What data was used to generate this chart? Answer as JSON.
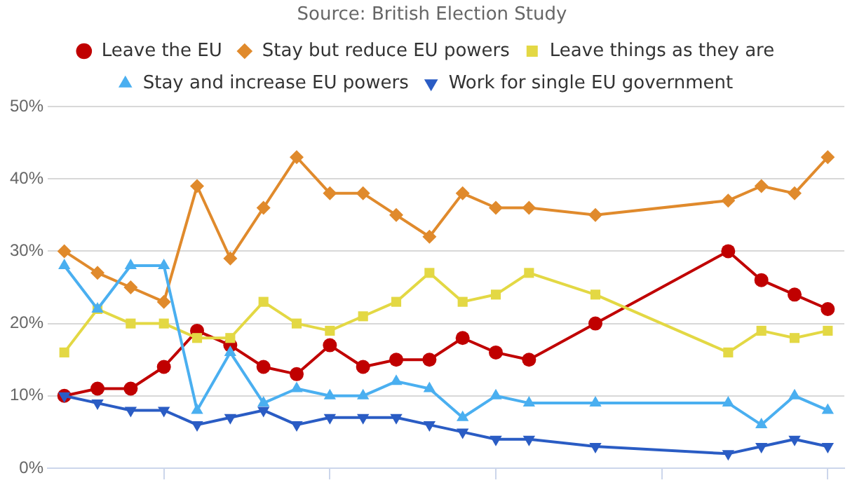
{
  "chart_data": {
    "type": "line",
    "annotations": [
      "Source: British Election Study"
    ],
    "categories": [
      null,
      null,
      null,
      null,
      null,
      null,
      null,
      null,
      null,
      null,
      null,
      null,
      null,
      null,
      null,
      null,
      null,
      null,
      null,
      null,
      null,
      null,
      null,
      null
    ],
    "series": [
      {
        "name": "Leave the EU",
        "color": "#c00000",
        "marker": "circle",
        "values": [
          10,
          11,
          11,
          14,
          19,
          17,
          14,
          13,
          17,
          14,
          15,
          15,
          18,
          16,
          15,
          null,
          20,
          null,
          null,
          null,
          30,
          26,
          24,
          22
        ]
      },
      {
        "name": "Stay but reduce EU powers",
        "color": "#e08a2c",
        "marker": "diamond",
        "values": [
          30,
          27,
          25,
          23,
          39,
          29,
          36,
          43,
          38,
          38,
          35,
          32,
          38,
          36,
          36,
          null,
          35,
          null,
          null,
          null,
          37,
          39,
          38,
          43
        ]
      },
      {
        "name": "Leave things as they are",
        "color": "#e3d844",
        "marker": "square",
        "values": [
          16,
          22,
          20,
          20,
          18,
          18,
          23,
          20,
          19,
          21,
          23,
          27,
          23,
          24,
          27,
          null,
          24,
          null,
          null,
          null,
          16,
          19,
          18,
          19
        ]
      },
      {
        "name": "Stay and increase EU powers",
        "color": "#4aaff0",
        "marker": "triangle",
        "values": [
          28,
          22,
          28,
          28,
          8,
          16,
          9,
          11,
          10,
          10,
          12,
          11,
          7,
          10,
          9,
          null,
          9,
          null,
          null,
          null,
          9,
          6,
          10,
          8
        ]
      },
      {
        "name": "Work for single EU government",
        "color": "#2a5cc4",
        "marker": "triangle-down",
        "values": [
          10,
          9,
          8,
          8,
          6,
          7,
          8,
          6,
          7,
          7,
          7,
          6,
          5,
          4,
          4,
          null,
          3,
          null,
          null,
          null,
          2,
          3,
          4,
          3
        ]
      }
    ],
    "ylim": [
      0,
      50
    ],
    "yticks": [
      {
        "value": 0,
        "label": "0%"
      },
      {
        "value": 10,
        "label": "10%"
      },
      {
        "value": 20,
        "label": "20%"
      },
      {
        "value": 30,
        "label": "30%"
      },
      {
        "value": 40,
        "label": "40%"
      },
      {
        "value": 50,
        "label": "50%"
      }
    ],
    "grid": "y",
    "legend": "top",
    "tick_labels": "y"
  }
}
